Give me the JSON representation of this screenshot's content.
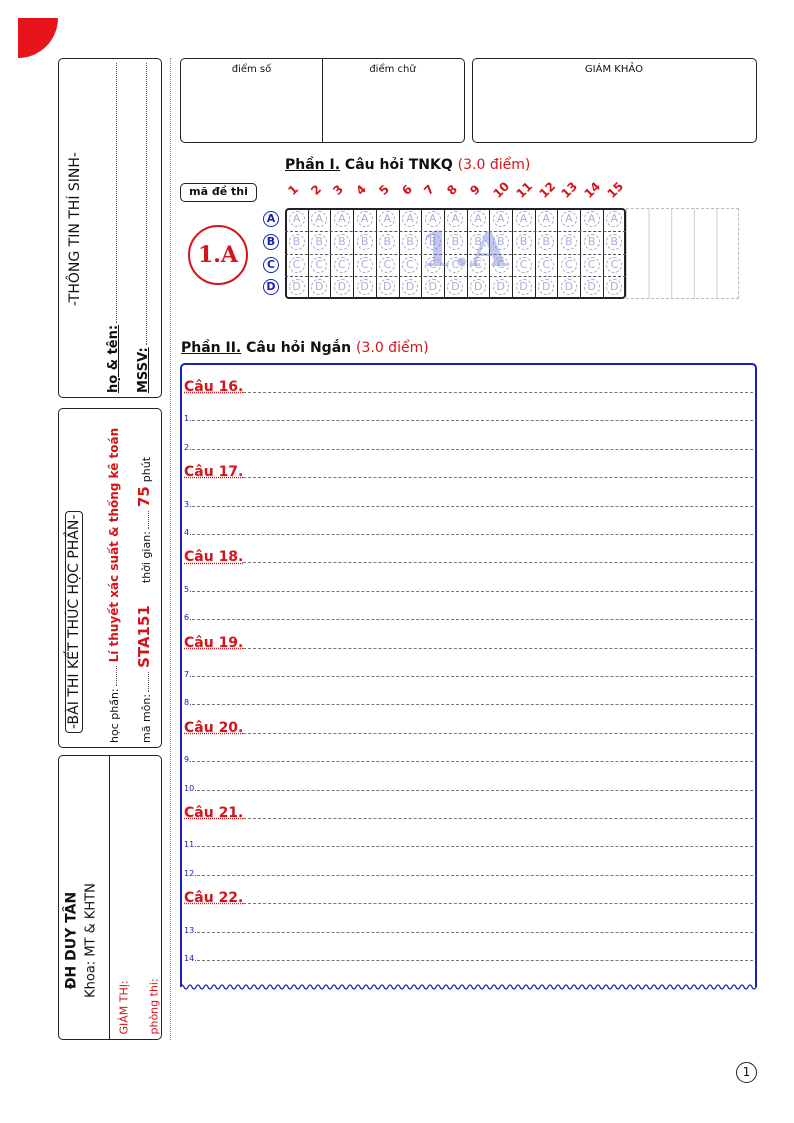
{
  "sidebar": {
    "student_info": {
      "title": "-THÔNG TIN THÍ SINH-",
      "name_label": "họ & tên:",
      "id_label": "MSSV:"
    },
    "exam_info": {
      "title": "-BÀI THI KẾT THÚC HỌC PHẦN-",
      "course_label": "học phần:",
      "course_value": "Lí thuyết xác suất & thống kê toán",
      "code_label": "mã môn:",
      "code_value": "STA151",
      "time_label": "thời gian:",
      "time_value": "75",
      "time_unit": "phút"
    },
    "school": {
      "name": "ĐH DUY TÂN",
      "faculty": "Khoa: MT & KHTN",
      "proctor_label": "GIÁM THỊ:",
      "room_label": "phòng thi:"
    }
  },
  "scores": {
    "numeric_label": "điểm số",
    "words_label": "điểm chữ",
    "examiner_label": "GIÁM KHẢO"
  },
  "part1": {
    "title_prefix": "Phần I.",
    "title": "Câu hỏi TNKQ",
    "points": "(3.0 điểm)",
    "exam_code_label": "mã đề thi",
    "exam_code": "1.A",
    "watermark": "1.A",
    "questions": [
      "1",
      "2",
      "3",
      "4",
      "5",
      "6",
      "7",
      "8",
      "9",
      "10",
      "11",
      "12",
      "13",
      "14",
      "15"
    ],
    "options": [
      "A",
      "B",
      "C",
      "D"
    ]
  },
  "part2": {
    "title_prefix": "Phần II.",
    "title": "Câu hỏi Ngắn",
    "points": "(3.0 điểm)",
    "questions": [
      {
        "label": "Câu 16.",
        "lines": [
          "1.",
          "2."
        ]
      },
      {
        "label": "Câu 17.",
        "lines": [
          "3.",
          "4."
        ]
      },
      {
        "label": "Câu 18.",
        "lines": [
          "5.",
          "6."
        ]
      },
      {
        "label": "Câu 19.",
        "lines": [
          "7.",
          "8."
        ]
      },
      {
        "label": "Câu 20.",
        "lines": [
          "9.",
          "10."
        ]
      },
      {
        "label": "Câu 21.",
        "lines": [
          "11.",
          "12."
        ]
      },
      {
        "label": "Câu 22.",
        "lines": [
          "13.",
          "14."
        ]
      }
    ]
  },
  "page_number": "1",
  "colors": {
    "accent_red": "#d4141b",
    "accent_blue": "#1a22b8"
  }
}
